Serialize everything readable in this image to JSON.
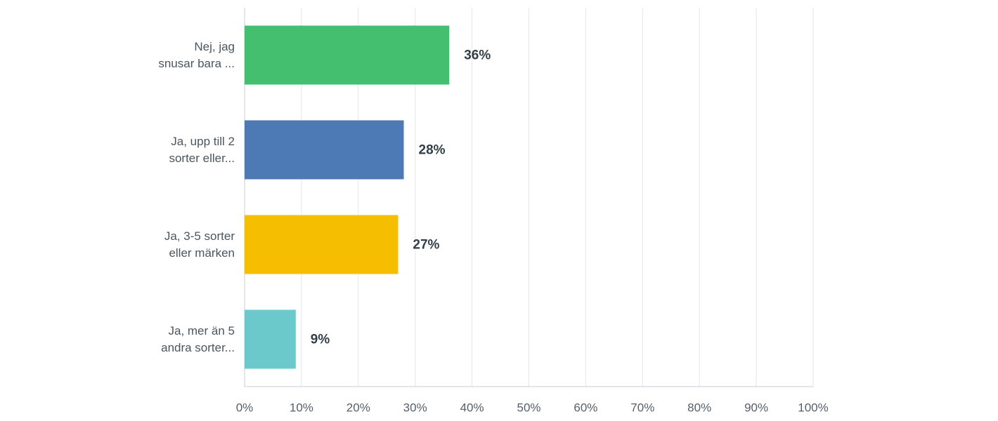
{
  "chart_data": {
    "type": "bar",
    "orientation": "horizontal",
    "categories": [
      "Nej, jag\nsnusar bara ...",
      "Ja, upp till 2\nsorter eller...",
      "Ja, 3-5 sorter\neller märken",
      "Ja, mer än 5\nandra sorter..."
    ],
    "values": [
      36,
      28,
      27,
      9
    ],
    "value_labels": [
      "36%",
      "28%",
      "27%",
      "9%"
    ],
    "colors": [
      "#43bf6f",
      "#4d7ab5",
      "#f6be00",
      "#6cc9cb"
    ],
    "xlim": [
      0,
      100
    ],
    "xticks": [
      {
        "value": 0,
        "label": "0%"
      },
      {
        "value": 10,
        "label": "10%"
      },
      {
        "value": 20,
        "label": "20%"
      },
      {
        "value": 30,
        "label": "30%"
      },
      {
        "value": 40,
        "label": "40%"
      },
      {
        "value": 50,
        "label": "50%"
      },
      {
        "value": 60,
        "label": "60%"
      },
      {
        "value": 70,
        "label": "70%"
      },
      {
        "value": 80,
        "label": "80%"
      },
      {
        "value": 90,
        "label": "90%"
      },
      {
        "value": 100,
        "label": "100%"
      }
    ],
    "grid": true
  }
}
